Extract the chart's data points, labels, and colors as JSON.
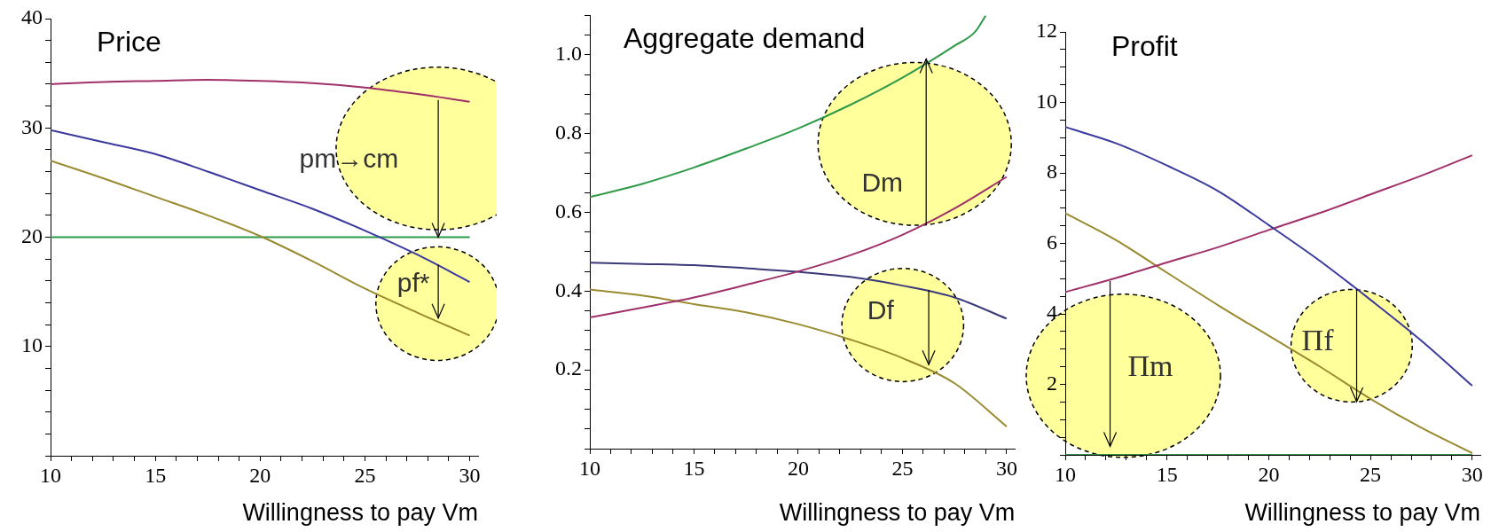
{
  "chart_data": [
    {
      "type": "line",
      "title": "Price",
      "xlabel": "Willingness to pay Vm",
      "legend": false,
      "grid": false,
      "marker": "none",
      "line_style": "solid",
      "x": [
        10,
        12.5,
        15,
        17.5,
        20,
        22.5,
        25,
        27.5,
        30
      ],
      "xlim": [
        10,
        30.4
      ],
      "xticks": [
        10,
        {
          "value": 11,
          "label": null
        },
        {
          "value": 12,
          "label": null
        },
        {
          "value": 13,
          "label": null
        },
        {
          "value": 14,
          "label": null
        },
        15,
        {
          "value": 16,
          "label": null
        },
        {
          "value": 17,
          "label": null
        },
        {
          "value": 18,
          "label": null
        },
        {
          "value": 19,
          "label": null
        },
        20,
        {
          "value": 21,
          "label": null
        },
        {
          "value": 22,
          "label": null
        },
        {
          "value": 23,
          "label": null
        },
        {
          "value": 24,
          "label": null
        },
        25,
        {
          "value": 26,
          "label": null
        },
        {
          "value": 27,
          "label": null
        },
        {
          "value": 28,
          "label": null
        },
        {
          "value": 29,
          "label": null
        },
        30
      ],
      "ylim": [
        0,
        40
      ],
      "yticks": [
        {
          "value": 0,
          "label": null
        },
        {
          "value": 2,
          "label": null
        },
        {
          "value": 4,
          "label": null
        },
        {
          "value": 6,
          "label": null
        },
        {
          "value": 8,
          "label": null
        },
        10,
        {
          "value": 12,
          "label": null
        },
        {
          "value": 14,
          "label": null
        },
        {
          "value": 16,
          "label": null
        },
        {
          "value": 18,
          "label": null
        },
        20,
        {
          "value": 22,
          "label": null
        },
        {
          "value": 24,
          "label": null
        },
        {
          "value": 26,
          "label": null
        },
        {
          "value": 28,
          "label": null
        },
        30,
        {
          "value": 32,
          "label": null
        },
        {
          "value": 34,
          "label": null
        },
        {
          "value": 36,
          "label": null
        },
        {
          "value": 38,
          "label": null
        },
        40
      ],
      "series": [
        {
          "color": "#a0306a",
          "values": [
            34.0,
            34.2,
            34.3,
            34.4,
            34.3,
            34.1,
            33.7,
            33.1,
            32.4
          ]
        },
        {
          "color": "#3a3a9e",
          "values": [
            29.8,
            28.7,
            27.6,
            26.0,
            24.3,
            22.6,
            20.6,
            18.4,
            15.9
          ]
        },
        {
          "color": "#9a8a30",
          "values": [
            27.0,
            25.4,
            23.7,
            22.0,
            20.1,
            17.8,
            15.3,
            13.1,
            11.0
          ]
        },
        {
          "color": "#2e9a48",
          "values": [
            20,
            20,
            20,
            20,
            20,
            20,
            20,
            20,
            20
          ]
        }
      ],
      "annotations": [
        {
          "text": "pm→cm",
          "x": 28.5,
          "y": 20
        },
        {
          "text": "pf*",
          "x": 28.5,
          "y": 12.6
        }
      ]
    },
    {
      "type": "line",
      "title": "Aggregate demand",
      "xlabel": "Willingness to pay Vm",
      "legend": false,
      "grid": false,
      "marker": "none",
      "line_style": "solid",
      "x": [
        10,
        12.5,
        15,
        17.5,
        20,
        22.5,
        25,
        27.5,
        30
      ],
      "xlim": [
        10,
        30.4
      ],
      "xticks": [
        10,
        {
          "value": 11,
          "label": null
        },
        {
          "value": 12,
          "label": null
        },
        {
          "value": 13,
          "label": null
        },
        {
          "value": 14,
          "label": null
        },
        15,
        {
          "value": 16,
          "label": null
        },
        {
          "value": 17,
          "label": null
        },
        {
          "value": 18,
          "label": null
        },
        {
          "value": 19,
          "label": null
        },
        20,
        {
          "value": 21,
          "label": null
        },
        {
          "value": 22,
          "label": null
        },
        {
          "value": 23,
          "label": null
        },
        {
          "value": 24,
          "label": null
        },
        25,
        {
          "value": 26,
          "label": null
        },
        {
          "value": 27,
          "label": null
        },
        {
          "value": 28,
          "label": null
        },
        {
          "value": 29,
          "label": null
        },
        30
      ],
      "ylim": [
        0,
        1.1
      ],
      "yticks": [
        {
          "value": 0,
          "label": null
        },
        {
          "value": 0.05,
          "label": null
        },
        {
          "value": 0.1,
          "label": null
        },
        {
          "value": 0.15,
          "label": null
        },
        0.2,
        {
          "value": 0.25,
          "label": null
        },
        {
          "value": 0.3,
          "label": null
        },
        {
          "value": 0.35,
          "label": null
        },
        0.4,
        {
          "value": 0.45,
          "label": null
        },
        {
          "value": 0.5,
          "label": null
        },
        {
          "value": 0.55,
          "label": null
        },
        0.6,
        {
          "value": 0.65,
          "label": null
        },
        {
          "value": 0.7,
          "label": null
        },
        {
          "value": 0.75,
          "label": null
        },
        0.8,
        {
          "value": 0.85,
          "label": null
        },
        {
          "value": 0.9,
          "label": null
        },
        {
          "value": 0.95,
          "label": null
        },
        {
          "value": 1,
          "label": "1.0"
        },
        {
          "value": 1.05,
          "label": null
        },
        {
          "value": 1.1,
          "label": null
        }
      ],
      "series": [
        {
          "color": "#2e9a48",
          "x": [
            10,
            12.5,
            15,
            17.5,
            20,
            22.5,
            25,
            27.5,
            28.5,
            29
          ],
          "values": [
            0.639,
            0.672,
            0.714,
            0.762,
            0.813,
            0.873,
            0.942,
            1.023,
            1.059,
            1.1
          ]
        },
        {
          "color": "#a0306a",
          "values": [
            0.333,
            0.358,
            0.384,
            0.416,
            0.45,
            0.491,
            0.543,
            0.61,
            0.69
          ]
        },
        {
          "color": "#3a3a7a",
          "values": [
            0.472,
            0.469,
            0.466,
            0.458,
            0.449,
            0.436,
            0.414,
            0.384,
            0.33
          ]
        },
        {
          "color": "#9a8a30",
          "values": [
            0.404,
            0.389,
            0.367,
            0.346,
            0.316,
            0.277,
            0.23,
            0.166,
            0.056
          ]
        }
      ],
      "annotations": [
        "Dm",
        "Df"
      ]
    },
    {
      "type": "line",
      "title": "Profit",
      "xlabel": "Willingness to pay Vm",
      "legend": false,
      "grid": false,
      "marker": "none",
      "line_style": "solid",
      "x": [
        10,
        12.5,
        15,
        17.5,
        20,
        22.5,
        25,
        27.5,
        30
      ],
      "xlim": [
        10,
        30.4
      ],
      "xticks": [
        10,
        {
          "value": 11,
          "label": null
        },
        {
          "value": 12,
          "label": null
        },
        {
          "value": 13,
          "label": null
        },
        {
          "value": 14,
          "label": null
        },
        15,
        {
          "value": 16,
          "label": null
        },
        {
          "value": 17,
          "label": null
        },
        {
          "value": 18,
          "label": null
        },
        {
          "value": 19,
          "label": null
        },
        20,
        {
          "value": 21,
          "label": null
        },
        {
          "value": 22,
          "label": null
        },
        {
          "value": 23,
          "label": null
        },
        {
          "value": 24,
          "label": null
        },
        25,
        {
          "value": 26,
          "label": null
        },
        {
          "value": 27,
          "label": null
        },
        {
          "value": 28,
          "label": null
        },
        {
          "value": 29,
          "label": null
        },
        30
      ],
      "ylim": [
        0,
        12
      ],
      "yticks": [
        {
          "value": 0,
          "label": null
        },
        {
          "value": 0.5,
          "label": null
        },
        {
          "value": 1,
          "label": null
        },
        {
          "value": 1.5,
          "label": null
        },
        2,
        {
          "value": 2.5,
          "label": null
        },
        {
          "value": 3,
          "label": null
        },
        {
          "value": 3.5,
          "label": null
        },
        4,
        {
          "value": 4.5,
          "label": null
        },
        {
          "value": 5,
          "label": null
        },
        {
          "value": 5.5,
          "label": null
        },
        6,
        {
          "value": 6.5,
          "label": null
        },
        {
          "value": 7,
          "label": null
        },
        {
          "value": 7.5,
          "label": null
        },
        8,
        {
          "value": 8.5,
          "label": null
        },
        {
          "value": 9,
          "label": null
        },
        {
          "value": 9.5,
          "label": null
        },
        10,
        {
          "value": 10.5,
          "label": null
        },
        {
          "value": 11,
          "label": null
        },
        {
          "value": 11.5,
          "label": null
        },
        12
      ],
      "series": [
        {
          "color": "#3a3a9e",
          "values": [
            9.3,
            8.84,
            8.21,
            7.49,
            6.52,
            5.51,
            4.4,
            3.24,
            1.96
          ]
        },
        {
          "color": "#a0306a",
          "values": [
            4.62,
            5.02,
            5.46,
            5.89,
            6.38,
            6.86,
            7.39,
            7.92,
            8.5
          ]
        },
        {
          "color": "#9a8a30",
          "values": [
            6.86,
            6.09,
            5.17,
            4.25,
            3.38,
            2.51,
            1.59,
            0.77,
            0.05
          ]
        },
        {
          "color": "#2e9a48",
          "values": [
            0,
            0,
            0,
            0,
            0,
            0,
            0,
            0,
            0
          ]
        }
      ],
      "annotations": [
        "Πm",
        "Πf"
      ]
    }
  ]
}
